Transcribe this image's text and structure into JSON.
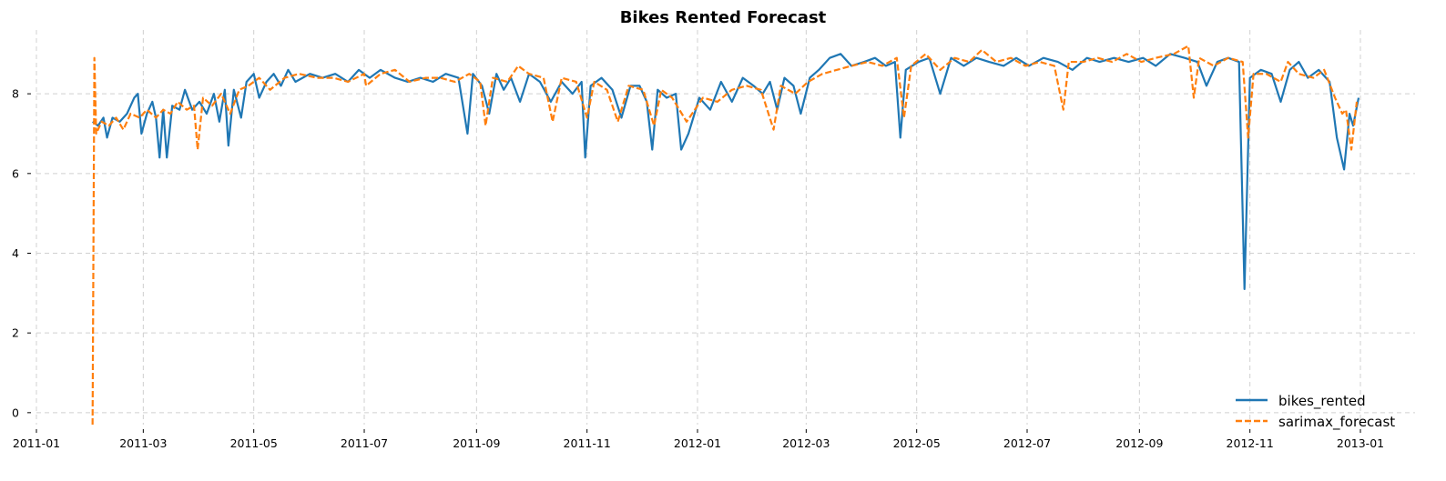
{
  "chart_data": {
    "type": "line",
    "title": "Bikes Rented Forecast",
    "xlabel": "",
    "ylabel": "",
    "x_axis": {
      "type": "date",
      "range": [
        "2011-01-01",
        "2013-01-01"
      ],
      "ticks": [
        "2011-01",
        "2011-03",
        "2011-05",
        "2011-07",
        "2011-09",
        "2011-11",
        "2012-01",
        "2012-03",
        "2012-05",
        "2012-07",
        "2012-09",
        "2012-11",
        "2013-01"
      ],
      "tick_labels": [
        "2011-01",
        "2011-03",
        "2011-05",
        "2011-07",
        "2011-09",
        "2011-11",
        "2012-01",
        "2012-03",
        "2012-05",
        "2012-07",
        "2012-09",
        "2012-11",
        "2013-01"
      ]
    },
    "y_axis": {
      "range": [
        -0.3,
        9.6
      ],
      "ticks": [
        0,
        2,
        4,
        6,
        8
      ],
      "tick_labels": [
        "0",
        "2",
        "4",
        "6",
        "8"
      ]
    },
    "grid": true,
    "legend": {
      "position": "bottom-right"
    },
    "series": [
      {
        "name": "bikes_rented",
        "color": "#1f77b4",
        "style": "solid",
        "points": [
          [
            "2011-02-01",
            7.3
          ],
          [
            "2011-02-04",
            7.2
          ],
          [
            "2011-02-07",
            7.4
          ],
          [
            "2011-02-09",
            6.9
          ],
          [
            "2011-02-12",
            7.4
          ],
          [
            "2011-02-16",
            7.3
          ],
          [
            "2011-02-20",
            7.5
          ],
          [
            "2011-02-24",
            7.9
          ],
          [
            "2011-02-26",
            8.0
          ],
          [
            "2011-02-28",
            7.0
          ],
          [
            "2011-03-03",
            7.5
          ],
          [
            "2011-03-06",
            7.8
          ],
          [
            "2011-03-08",
            7.4
          ],
          [
            "2011-03-10",
            6.4
          ],
          [
            "2011-03-12",
            7.6
          ],
          [
            "2011-03-14",
            6.4
          ],
          [
            "2011-03-17",
            7.7
          ],
          [
            "2011-03-21",
            7.6
          ],
          [
            "2011-03-24",
            8.1
          ],
          [
            "2011-03-28",
            7.6
          ],
          [
            "2011-04-01",
            7.8
          ],
          [
            "2011-04-05",
            7.5
          ],
          [
            "2011-04-09",
            8.0
          ],
          [
            "2011-04-12",
            7.3
          ],
          [
            "2011-04-15",
            8.1
          ],
          [
            "2011-04-17",
            6.7
          ],
          [
            "2011-04-20",
            8.1
          ],
          [
            "2011-04-24",
            7.4
          ],
          [
            "2011-04-27",
            8.3
          ],
          [
            "2011-05-01",
            8.5
          ],
          [
            "2011-05-04",
            7.9
          ],
          [
            "2011-05-08",
            8.3
          ],
          [
            "2011-05-12",
            8.5
          ],
          [
            "2011-05-16",
            8.2
          ],
          [
            "2011-05-20",
            8.6
          ],
          [
            "2011-05-24",
            8.3
          ],
          [
            "2011-06-01",
            8.5
          ],
          [
            "2011-06-08",
            8.4
          ],
          [
            "2011-06-15",
            8.5
          ],
          [
            "2011-06-22",
            8.3
          ],
          [
            "2011-06-28",
            8.6
          ],
          [
            "2011-07-04",
            8.4
          ],
          [
            "2011-07-10",
            8.6
          ],
          [
            "2011-07-18",
            8.4
          ],
          [
            "2011-07-25",
            8.3
          ],
          [
            "2011-08-01",
            8.4
          ],
          [
            "2011-08-08",
            8.3
          ],
          [
            "2011-08-15",
            8.5
          ],
          [
            "2011-08-22",
            8.4
          ],
          [
            "2011-08-27",
            7.0
          ],
          [
            "2011-08-30",
            8.5
          ],
          [
            "2011-09-04",
            8.2
          ],
          [
            "2011-09-08",
            7.5
          ],
          [
            "2011-09-12",
            8.5
          ],
          [
            "2011-09-16",
            8.1
          ],
          [
            "2011-09-20",
            8.4
          ],
          [
            "2011-09-25",
            7.8
          ],
          [
            "2011-09-30",
            8.5
          ],
          [
            "2011-10-06",
            8.3
          ],
          [
            "2011-10-12",
            7.8
          ],
          [
            "2011-10-18",
            8.3
          ],
          [
            "2011-10-24",
            8.0
          ],
          [
            "2011-10-29",
            8.3
          ],
          [
            "2011-10-31",
            6.4
          ],
          [
            "2011-11-03",
            8.2
          ],
          [
            "2011-11-09",
            8.4
          ],
          [
            "2011-11-15",
            8.1
          ],
          [
            "2011-11-20",
            7.4
          ],
          [
            "2011-11-25",
            8.2
          ],
          [
            "2011-11-30",
            8.2
          ],
          [
            "2011-12-04",
            7.8
          ],
          [
            "2011-12-07",
            6.6
          ],
          [
            "2011-12-10",
            8.1
          ],
          [
            "2011-12-15",
            7.9
          ],
          [
            "2011-12-20",
            8.0
          ],
          [
            "2011-12-23",
            6.6
          ],
          [
            "2011-12-27",
            7.0
          ],
          [
            "2012-01-02",
            7.9
          ],
          [
            "2012-01-08",
            7.6
          ],
          [
            "2012-01-14",
            8.3
          ],
          [
            "2012-01-20",
            7.8
          ],
          [
            "2012-01-26",
            8.4
          ],
          [
            "2012-02-01",
            8.2
          ],
          [
            "2012-02-06",
            8.0
          ],
          [
            "2012-02-10",
            8.3
          ],
          [
            "2012-02-14",
            7.6
          ],
          [
            "2012-02-18",
            8.4
          ],
          [
            "2012-02-23",
            8.2
          ],
          [
            "2012-02-27",
            7.5
          ],
          [
            "2012-03-03",
            8.4
          ],
          [
            "2012-03-08",
            8.6
          ],
          [
            "2012-03-14",
            8.9
          ],
          [
            "2012-03-20",
            9.0
          ],
          [
            "2012-03-26",
            8.7
          ],
          [
            "2012-04-02",
            8.8
          ],
          [
            "2012-04-08",
            8.9
          ],
          [
            "2012-04-14",
            8.7
          ],
          [
            "2012-04-19",
            8.8
          ],
          [
            "2012-04-22",
            6.9
          ],
          [
            "2012-04-25",
            8.6
          ],
          [
            "2012-05-02",
            8.8
          ],
          [
            "2012-05-08",
            8.9
          ],
          [
            "2012-05-14",
            8.0
          ],
          [
            "2012-05-20",
            8.9
          ],
          [
            "2012-05-27",
            8.7
          ],
          [
            "2012-06-03",
            8.9
          ],
          [
            "2012-06-10",
            8.8
          ],
          [
            "2012-06-18",
            8.7
          ],
          [
            "2012-06-25",
            8.9
          ],
          [
            "2012-07-02",
            8.7
          ],
          [
            "2012-07-10",
            8.9
          ],
          [
            "2012-07-18",
            8.8
          ],
          [
            "2012-07-26",
            8.6
          ],
          [
            "2012-08-03",
            8.9
          ],
          [
            "2012-08-10",
            8.8
          ],
          [
            "2012-08-18",
            8.9
          ],
          [
            "2012-08-26",
            8.8
          ],
          [
            "2012-09-03",
            8.9
          ],
          [
            "2012-09-10",
            8.7
          ],
          [
            "2012-09-18",
            9.0
          ],
          [
            "2012-09-26",
            8.9
          ],
          [
            "2012-10-03",
            8.8
          ],
          [
            "2012-10-08",
            8.2
          ],
          [
            "2012-10-14",
            8.8
          ],
          [
            "2012-10-20",
            8.9
          ],
          [
            "2012-10-26",
            8.8
          ],
          [
            "2012-10-29",
            3.1
          ],
          [
            "2012-11-01",
            8.4
          ],
          [
            "2012-11-07",
            8.6
          ],
          [
            "2012-11-13",
            8.5
          ],
          [
            "2012-11-18",
            7.8
          ],
          [
            "2012-11-23",
            8.6
          ],
          [
            "2012-11-28",
            8.8
          ],
          [
            "2012-12-03",
            8.4
          ],
          [
            "2012-12-09",
            8.6
          ],
          [
            "2012-12-15",
            8.3
          ],
          [
            "2012-12-19",
            6.9
          ],
          [
            "2012-12-23",
            6.1
          ],
          [
            "2012-12-26",
            7.5
          ],
          [
            "2012-12-28",
            7.2
          ],
          [
            "2012-12-31",
            7.9
          ]
        ]
      },
      {
        "name": "sarimax_forecast",
        "color": "#ff7f0e",
        "style": "dashed",
        "points": [
          [
            "2011-02-01",
            -0.3
          ],
          [
            "2011-02-02",
            8.9
          ],
          [
            "2011-02-03",
            7.0
          ],
          [
            "2011-02-06",
            7.3
          ],
          [
            "2011-02-10",
            7.2
          ],
          [
            "2011-02-14",
            7.4
          ],
          [
            "2011-02-18",
            7.1
          ],
          [
            "2011-02-22",
            7.5
          ],
          [
            "2011-02-27",
            7.4
          ],
          [
            "2011-03-03",
            7.6
          ],
          [
            "2011-03-08",
            7.4
          ],
          [
            "2011-03-12",
            7.6
          ],
          [
            "2011-03-16",
            7.5
          ],
          [
            "2011-03-20",
            7.8
          ],
          [
            "2011-03-25",
            7.6
          ],
          [
            "2011-03-29",
            7.7
          ],
          [
            "2011-03-31",
            6.6
          ],
          [
            "2011-04-03",
            7.9
          ],
          [
            "2011-04-08",
            7.7
          ],
          [
            "2011-04-13",
            8.0
          ],
          [
            "2011-04-18",
            7.5
          ],
          [
            "2011-04-23",
            8.1
          ],
          [
            "2011-04-28",
            8.2
          ],
          [
            "2011-05-04",
            8.4
          ],
          [
            "2011-05-10",
            8.1
          ],
          [
            "2011-05-18",
            8.4
          ],
          [
            "2011-05-26",
            8.5
          ],
          [
            "2011-06-05",
            8.4
          ],
          [
            "2011-06-14",
            8.4
          ],
          [
            "2011-06-22",
            8.3
          ],
          [
            "2011-07-01",
            8.5
          ],
          [
            "2011-07-02",
            8.2
          ],
          [
            "2011-07-10",
            8.5
          ],
          [
            "2011-07-18",
            8.6
          ],
          [
            "2011-07-26",
            8.3
          ],
          [
            "2011-08-04",
            8.4
          ],
          [
            "2011-08-12",
            8.4
          ],
          [
            "2011-08-20",
            8.3
          ],
          [
            "2011-08-28",
            8.5
          ],
          [
            "2011-09-03",
            8.3
          ],
          [
            "2011-09-06",
            7.2
          ],
          [
            "2011-09-10",
            8.4
          ],
          [
            "2011-09-18",
            8.3
          ],
          [
            "2011-09-24",
            8.7
          ],
          [
            "2011-09-30",
            8.5
          ],
          [
            "2011-10-08",
            8.4
          ],
          [
            "2011-10-13",
            7.3
          ],
          [
            "2011-10-18",
            8.4
          ],
          [
            "2011-10-26",
            8.3
          ],
          [
            "2011-11-01",
            7.4
          ],
          [
            "2011-11-05",
            8.3
          ],
          [
            "2011-11-12",
            8.1
          ],
          [
            "2011-11-18",
            7.3
          ],
          [
            "2011-11-24",
            8.2
          ],
          [
            "2011-12-02",
            8.1
          ],
          [
            "2011-12-08",
            7.2
          ],
          [
            "2011-12-12",
            8.1
          ],
          [
            "2011-12-18",
            7.9
          ],
          [
            "2011-12-26",
            7.3
          ],
          [
            "2012-01-04",
            7.9
          ],
          [
            "2012-01-12",
            7.8
          ],
          [
            "2012-01-20",
            8.1
          ],
          [
            "2012-01-28",
            8.2
          ],
          [
            "2012-02-05",
            8.1
          ],
          [
            "2012-02-12",
            7.1
          ],
          [
            "2012-02-16",
            8.2
          ],
          [
            "2012-02-24",
            8.0
          ],
          [
            "2012-03-02",
            8.3
          ],
          [
            "2012-03-10",
            8.5
          ],
          [
            "2012-03-18",
            8.6
          ],
          [
            "2012-03-26",
            8.7
          ],
          [
            "2012-04-04",
            8.8
          ],
          [
            "2012-04-12",
            8.7
          ],
          [
            "2012-04-20",
            8.9
          ],
          [
            "2012-04-24",
            7.4
          ],
          [
            "2012-04-28",
            8.7
          ],
          [
            "2012-05-06",
            9.0
          ],
          [
            "2012-05-14",
            8.6
          ],
          [
            "2012-05-22",
            8.9
          ],
          [
            "2012-05-30",
            8.8
          ],
          [
            "2012-06-06",
            9.1
          ],
          [
            "2012-06-14",
            8.8
          ],
          [
            "2012-06-22",
            8.9
          ],
          [
            "2012-06-30",
            8.7
          ],
          [
            "2012-07-08",
            8.8
          ],
          [
            "2012-07-16",
            8.7
          ],
          [
            "2012-07-21",
            7.6
          ],
          [
            "2012-07-24",
            8.8
          ],
          [
            "2012-08-01",
            8.8
          ],
          [
            "2012-08-09",
            8.9
          ],
          [
            "2012-08-17",
            8.8
          ],
          [
            "2012-08-25",
            9.0
          ],
          [
            "2012-09-02",
            8.8
          ],
          [
            "2012-09-10",
            8.9
          ],
          [
            "2012-09-20",
            9.0
          ],
          [
            "2012-09-28",
            9.2
          ],
          [
            "2012-10-01",
            7.9
          ],
          [
            "2012-10-04",
            8.9
          ],
          [
            "2012-10-12",
            8.7
          ],
          [
            "2012-10-20",
            8.9
          ],
          [
            "2012-10-28",
            8.8
          ],
          [
            "2012-10-31",
            6.9
          ],
          [
            "2012-11-03",
            8.5
          ],
          [
            "2012-11-10",
            8.5
          ],
          [
            "2012-11-18",
            8.3
          ],
          [
            "2012-11-22",
            8.8
          ],
          [
            "2012-11-28",
            8.5
          ],
          [
            "2012-12-06",
            8.4
          ],
          [
            "2012-12-12",
            8.6
          ],
          [
            "2012-12-18",
            7.9
          ],
          [
            "2012-12-22",
            7.5
          ],
          [
            "2012-12-24",
            7.6
          ],
          [
            "2012-12-27",
            6.6
          ],
          [
            "2012-12-30",
            7.8
          ]
        ]
      }
    ]
  }
}
